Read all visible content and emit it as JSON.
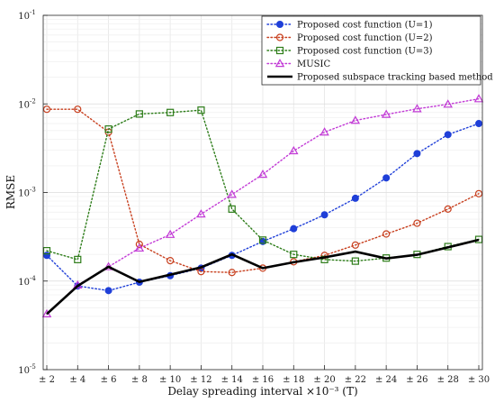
{
  "chart_data": {
    "type": "line",
    "xlabel": "Delay spreading interval ×10⁻³ (T)",
    "ylabel": "RMSE",
    "yscale": "log",
    "ylim": [
      1e-05,
      0.1
    ],
    "grid": true,
    "legend_position": "top-right",
    "categories": [
      "± 2",
      "± 4",
      "± 6",
      "± 8",
      "± 10",
      "± 12",
      "± 14",
      "± 16",
      "± 18",
      "± 20",
      "± 22",
      "± 24",
      "± 26",
      "± 28",
      "± 30"
    ],
    "y_ticks": [
      {
        "value": 1e-05,
        "base": "10",
        "exp": "-5"
      },
      {
        "value": 0.0001,
        "base": "10",
        "exp": "-4"
      },
      {
        "value": 0.001,
        "base": "10",
        "exp": "-3"
      },
      {
        "value": 0.01,
        "base": "10",
        "exp": "-2"
      },
      {
        "value": 0.1,
        "base": "10",
        "exp": "-1"
      }
    ],
    "series": [
      {
        "name": "Proposed cost function (U=1)",
        "color": "#1f3fd8",
        "marker": "circle",
        "dash": "dotted",
        "values": [
          0.000195,
          8.8e-05,
          7.8e-05,
          9.7e-05,
          0.000115,
          0.00014,
          0.000195,
          0.00028,
          0.00039,
          0.00056,
          0.00086,
          0.00146,
          0.00275,
          0.0045,
          0.006
        ]
      },
      {
        "name": "Proposed cost function (U=2)",
        "color": "#c8401f",
        "marker": "open-circle",
        "dash": "dotted",
        "values": [
          0.0087,
          0.0087,
          0.0048,
          0.00026,
          0.00017,
          0.000128,
          0.000125,
          0.00014,
          0.000165,
          0.000195,
          0.000255,
          0.00034,
          0.00045,
          0.00065,
          0.00097
        ]
      },
      {
        "name": "Proposed cost function (U=3)",
        "color": "#2e7d1a",
        "marker": "square",
        "dash": "dotted",
        "values": [
          0.00022,
          0.000175,
          0.0052,
          0.0077,
          0.008,
          0.0085,
          0.00065,
          0.00029,
          0.0002,
          0.000175,
          0.000168,
          0.000182,
          0.0002,
          0.000245,
          0.000295
        ]
      },
      {
        "name": "MUSIC",
        "color": "#c23ad6",
        "marker": "triangle",
        "dash": "dotted",
        "values": [
          4.25e-05,
          9e-05,
          0.000145,
          0.000235,
          0.000335,
          0.00057,
          0.00095,
          0.0016,
          0.00295,
          0.0048,
          0.0065,
          0.0076,
          0.0088,
          0.0099,
          0.0114
        ]
      },
      {
        "name": "Proposed subspace tracking based method",
        "color": "#000000",
        "marker": "none",
        "dash": "solid",
        "values": [
          4.25e-05,
          8.8e-05,
          0.000145,
          9.8e-05,
          0.000118,
          0.000143,
          0.0002,
          0.00014,
          0.000163,
          0.000185,
          0.000215,
          0.00018,
          0.000198,
          0.00024,
          0.000292
        ]
      }
    ]
  }
}
